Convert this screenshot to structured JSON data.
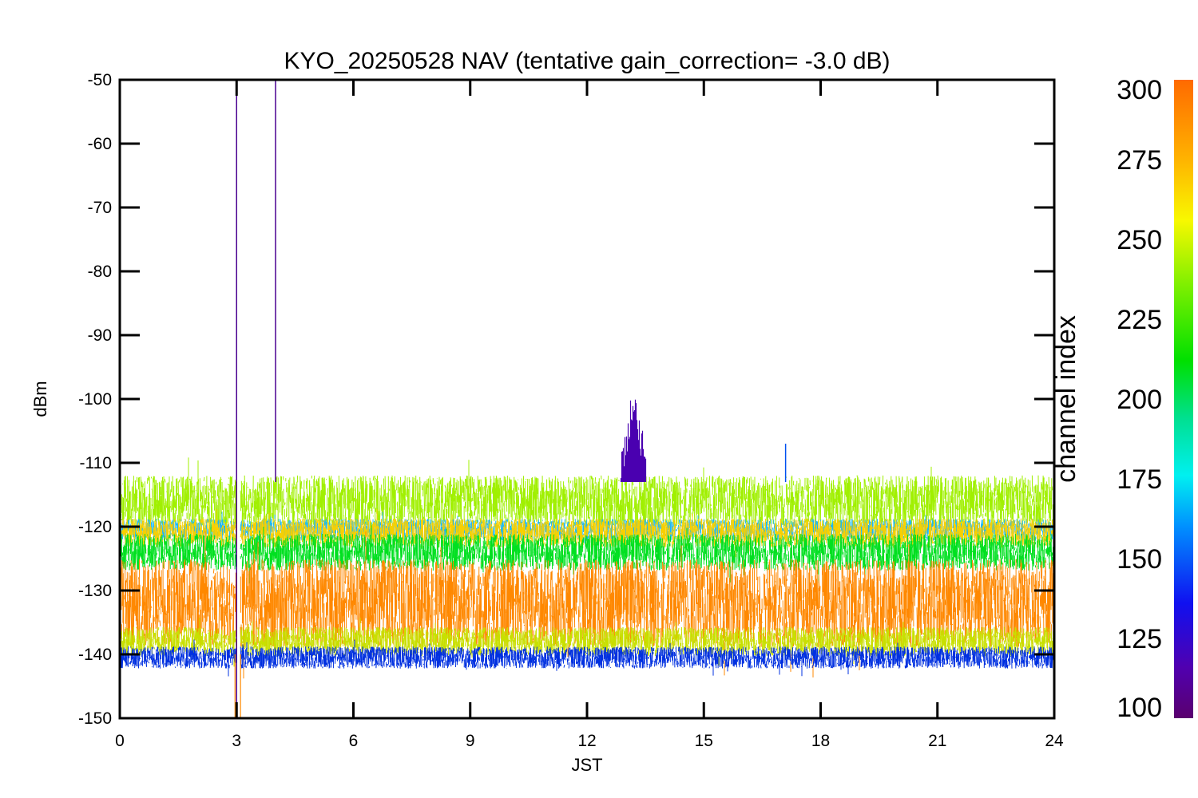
{
  "chart_data": {
    "type": "line",
    "title": "KYO_20250528 NAV (tentative gain_correction= -3.0 dB)",
    "xlabel": "JST",
    "ylabel": "dBm",
    "xlim": [
      0,
      24
    ],
    "ylim": [
      -150,
      -50
    ],
    "x_ticks": [
      "0",
      "3",
      "6",
      "9",
      "12",
      "15",
      "18",
      "21",
      "24"
    ],
    "y_ticks": [
      "-50",
      "-60",
      "-70",
      "-80",
      "-90",
      "-100",
      "-110",
      "-120",
      "-130",
      "-140",
      "-150"
    ],
    "colorbar": {
      "label": "channel index",
      "range": [
        100,
        300
      ],
      "ticks": [
        "300",
        "275",
        "250",
        "225",
        "200",
        "175",
        "150",
        "125",
        "100"
      ]
    },
    "bands": [
      {
        "channel": 250,
        "color": "#a0f000",
        "center": -116,
        "half_width": 3.5
      },
      {
        "channel": 175,
        "color": "#20b8f0",
        "center": -120.5,
        "half_width": 1.5
      },
      {
        "channel": 275,
        "color": "#f8d000",
        "center": -121,
        "half_width": 2
      },
      {
        "channel": 225,
        "color": "#00e020",
        "center": -124,
        "half_width": 2.5
      },
      {
        "channel": 285,
        "color": "#ff8800",
        "center": -132,
        "half_width": 6
      },
      {
        "channel": 265,
        "color": "#c8e000",
        "center": -138,
        "half_width": 2
      },
      {
        "channel": 150,
        "color": "#0030e0",
        "center": -140.5,
        "half_width": 1.5
      }
    ],
    "events": [
      {
        "x": 3.0,
        "y_top": -52,
        "y_bottom": -150,
        "channel": 110,
        "color": "#4a0090"
      },
      {
        "x": 4.0,
        "y_top": -50,
        "y_bottom": -113,
        "channel": 110,
        "color": "#4a0090"
      },
      {
        "x": 13.2,
        "y_top": -97.5,
        "y_bottom": -113,
        "channel": 110,
        "color": "#4a00b0"
      },
      {
        "x": 17.1,
        "y_top": -107,
        "y_bottom": -113,
        "channel": 140,
        "color": "#0050f0"
      }
    ],
    "gap": {
      "x_start": 2.98,
      "x_end": 3.08
    }
  }
}
